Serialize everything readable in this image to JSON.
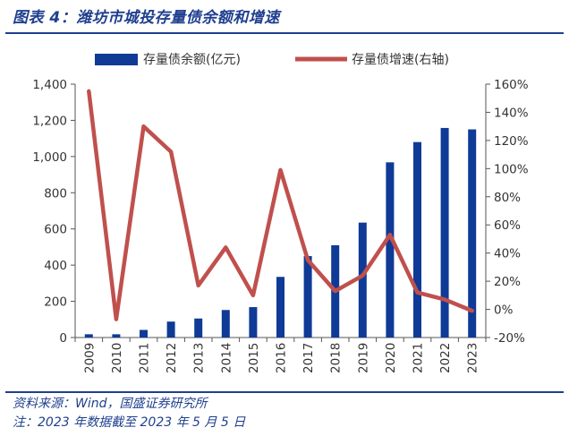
{
  "header": {
    "title": "图表 4：潍坊市城投存量债余额和增速"
  },
  "footer": {
    "source": "资料来源：Wind，国盛证券研究所",
    "note": "注：2023 年数据截至 2023 年 5 月 5 日"
  },
  "chart_data": {
    "type": "bar",
    "categories": [
      "2009",
      "2010",
      "2011",
      "2012",
      "2013",
      "2014",
      "2015",
      "2016",
      "2017",
      "2018",
      "2019",
      "2020",
      "2021",
      "2022",
      "2023"
    ],
    "series": [
      {
        "name": "存量债余额(亿元)",
        "type": "bar",
        "axis": "left",
        "color": "#0f3a96",
        "values": [
          18,
          18,
          42,
          88,
          105,
          152,
          168,
          335,
          450,
          510,
          635,
          968,
          1080,
          1158,
          1150
        ]
      },
      {
        "name": "存量债增速(右轴)",
        "type": "line",
        "axis": "right",
        "color": "#c0504d",
        "values": [
          1.55,
          -0.07,
          1.3,
          1.12,
          0.17,
          0.44,
          0.1,
          0.99,
          0.35,
          0.13,
          0.24,
          0.53,
          0.12,
          0.07,
          -0.01
        ]
      }
    ],
    "y_left": {
      "ylim": [
        0,
        1400
      ],
      "ticks": [
        0,
        200,
        400,
        600,
        800,
        1000,
        1200,
        1400
      ],
      "tick_labels": [
        "0",
        "200",
        "400",
        "600",
        "800",
        "1,000",
        "1,200",
        "1,400"
      ]
    },
    "y_right": {
      "ylim": [
        -0.2,
        1.6
      ],
      "ticks": [
        -0.2,
        0,
        0.2,
        0.4,
        0.6,
        0.8,
        1.0,
        1.2,
        1.4,
        1.6
      ],
      "tick_labels": [
        "-20%",
        "0%",
        "20%",
        "40%",
        "60%",
        "80%",
        "100%",
        "120%",
        "140%",
        "160%"
      ]
    },
    "grid": false,
    "legend": "top"
  }
}
